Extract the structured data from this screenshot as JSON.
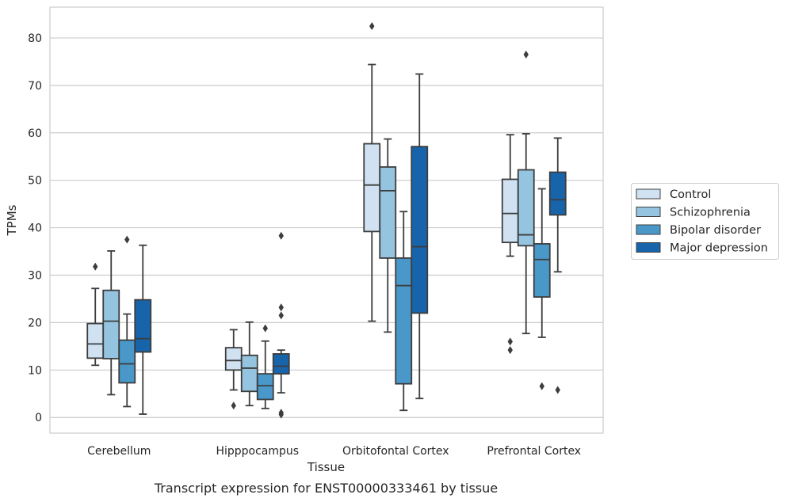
{
  "chart_data": {
    "type": "box",
    "title": "",
    "caption": "Transcript expression for ENST00000333461 by tissue",
    "xlabel": "Tissue",
    "ylabel": "TPMs",
    "ylim": [
      -3.3,
      86.5
    ],
    "yticks": [
      0,
      10,
      20,
      30,
      40,
      50,
      60,
      70,
      80
    ],
    "grid": "horizontal",
    "legend_position": "right",
    "categories": [
      "Cerebellum",
      "Hipppocampus",
      "Orbitofontal Cortex",
      "Prefrontal Cortex"
    ],
    "series": [
      {
        "name": "Control",
        "color": "#d0e1f2",
        "boxes": [
          {
            "whisker_low": 11.0,
            "q1": 12.5,
            "median": 15.5,
            "q3": 19.8,
            "whisker_high": 27.2,
            "outliers": [
              31.8
            ]
          },
          {
            "whisker_low": 5.8,
            "q1": 10.0,
            "median": 12.0,
            "q3": 14.7,
            "whisker_high": 18.5,
            "outliers": [
              2.5
            ]
          },
          {
            "whisker_low": 20.3,
            "q1": 39.2,
            "median": 49.0,
            "q3": 57.7,
            "whisker_high": 74.4,
            "outliers": [
              82.5
            ]
          },
          {
            "whisker_low": 34.0,
            "q1": 36.9,
            "median": 43.0,
            "q3": 50.2,
            "whisker_high": 59.6,
            "outliers": [
              16.0,
              14.2
            ]
          }
        ]
      },
      {
        "name": "Schizophrenia",
        "color": "#94c4df",
        "boxes": [
          {
            "whisker_low": 4.8,
            "q1": 12.4,
            "median": 20.3,
            "q3": 26.8,
            "whisker_high": 35.1,
            "outliers": []
          },
          {
            "whisker_low": 2.5,
            "q1": 5.5,
            "median": 10.4,
            "q3": 13.1,
            "whisker_high": 20.1,
            "outliers": []
          },
          {
            "whisker_low": 18.0,
            "q1": 33.6,
            "median": 47.8,
            "q3": 52.8,
            "whisker_high": 58.7,
            "outliers": []
          },
          {
            "whisker_low": 17.7,
            "q1": 36.2,
            "median": 38.5,
            "q3": 52.2,
            "whisker_high": 59.8,
            "outliers": [
              76.5
            ]
          }
        ]
      },
      {
        "name": "Bipolar disorder",
        "color": "#4a98c9",
        "boxes": [
          {
            "whisker_low": 2.3,
            "q1": 7.3,
            "median": 11.3,
            "q3": 16.3,
            "whisker_high": 21.8,
            "outliers": [
              37.5
            ]
          },
          {
            "whisker_low": 1.9,
            "q1": 3.8,
            "median": 6.7,
            "q3": 9.2,
            "whisker_high": 16.1,
            "outliers": [
              18.8
            ]
          },
          {
            "whisker_low": 1.5,
            "q1": 7.1,
            "median": 27.8,
            "q3": 33.6,
            "whisker_high": 43.4,
            "outliers": []
          },
          {
            "whisker_low": 16.9,
            "q1": 25.4,
            "median": 33.3,
            "q3": 36.6,
            "whisker_high": 48.2,
            "outliers": [
              6.6
            ]
          }
        ]
      },
      {
        "name": "Major depression",
        "color": "#1764ab",
        "boxes": [
          {
            "whisker_low": 0.7,
            "q1": 13.8,
            "median": 16.6,
            "q3": 24.8,
            "whisker_high": 36.3,
            "outliers": []
          },
          {
            "whisker_low": 5.2,
            "q1": 9.2,
            "median": 10.8,
            "q3": 13.4,
            "whisker_high": 14.2,
            "outliers": [
              38.3,
              23.2,
              21.5,
              1.0,
              0.6
            ]
          },
          {
            "whisker_low": 4.0,
            "q1": 22.0,
            "median": 36.0,
            "q3": 57.1,
            "whisker_high": 72.4,
            "outliers": []
          },
          {
            "whisker_low": 30.7,
            "q1": 42.7,
            "median": 45.9,
            "q3": 51.7,
            "whisker_high": 58.9,
            "outliers": [
              5.8
            ]
          }
        ]
      }
    ]
  }
}
